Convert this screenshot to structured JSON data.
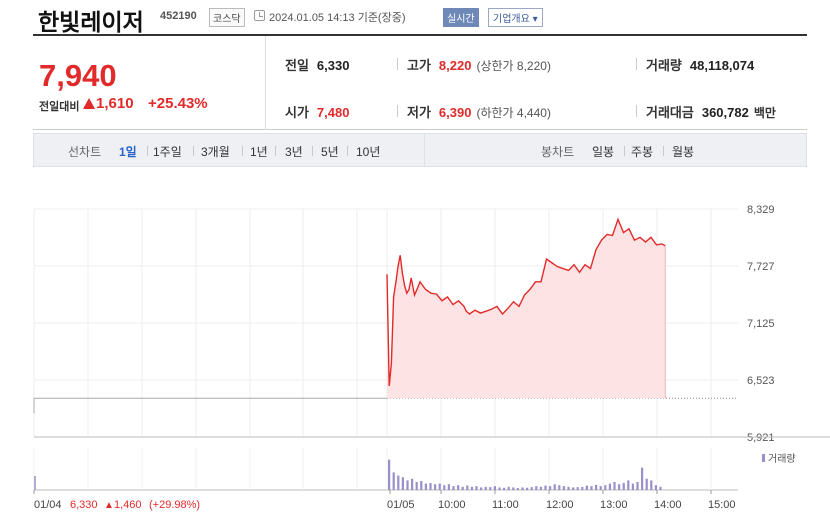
{
  "header": {
    "name": "한빛레이저",
    "code": "452190",
    "market": "코스닥",
    "timestamp": "2024.01.05 14:13 기준(장중)",
    "realtime": "실시간",
    "company_info": "기업개요 ▾"
  },
  "summary": {
    "price": "7,940",
    "change_label": "전일대비",
    "change_amount": "1,610",
    "change_percent": "+25.43%",
    "prev_close": {
      "label": "전일",
      "value": "6,330"
    },
    "open": {
      "label": "시가",
      "value": "7,480"
    },
    "high": {
      "label": "고가",
      "value": "8,220",
      "limit": "(상한가 8,220)"
    },
    "low": {
      "label": "저가",
      "value": "6,390",
      "limit": "(하한가 4,440)"
    },
    "volume": {
      "label": "거래량",
      "value": "48,118,074"
    },
    "turnover": {
      "label": "거래대금",
      "value": "360,782",
      "unit": "백만"
    }
  },
  "tabs": {
    "line_header": "선차트",
    "line": [
      "1일",
      "1주일",
      "3개월",
      "1년",
      "3년",
      "5년",
      "10년"
    ],
    "candle_header": "봉차트",
    "candle": [
      "일봉",
      "주봉",
      "월봉"
    ]
  },
  "colors": {
    "up": "#e22a2a",
    "area_fill": "#fde3e3",
    "volume": "#9a8fc9"
  },
  "chart_data": {
    "type": "area",
    "ylim": [
      5921,
      8329
    ],
    "yticks": [
      "8,329",
      "7,727",
      "7,125",
      "6,523",
      "5,921"
    ],
    "xticks": [
      "01/04",
      "01/05",
      "10:00",
      "11:00",
      "12:00",
      "13:00",
      "14:00",
      "15:00"
    ],
    "prev_day_label": "01/04",
    "prev_day_close": "6,330",
    "prev_day_change": "1,460",
    "prev_day_change_pct": "(+29.98%)",
    "volume_legend": "거래량",
    "prev_close_line": 6330,
    "series": [
      {
        "x": [
          0,
          2,
          4,
          6,
          8,
          10,
          12,
          14,
          16,
          18,
          20,
          22,
          25,
          28,
          30,
          35,
          40,
          45,
          50,
          55,
          60,
          65,
          70,
          72,
          75,
          80,
          85,
          90,
          95,
          100,
          105,
          110,
          115,
          120,
          125,
          130,
          135,
          140,
          145,
          150,
          155,
          160,
          165,
          170,
          175,
          180,
          185,
          190,
          195,
          200,
          205,
          210,
          215,
          220,
          225,
          230,
          235,
          240,
          245,
          250,
          253
        ],
        "values": [
          7640,
          6460,
          6700,
          7400,
          7550,
          7720,
          7840,
          7650,
          7520,
          7440,
          7480,
          7600,
          7420,
          7500,
          7560,
          7480,
          7440,
          7430,
          7360,
          7400,
          7320,
          7360,
          7300,
          7250,
          7220,
          7260,
          7230,
          7250,
          7270,
          7300,
          7220,
          7280,
          7350,
          7300,
          7420,
          7480,
          7560,
          7560,
          7800,
          7760,
          7720,
          7700,
          7680,
          7740,
          7660,
          7740,
          7700,
          7900,
          8000,
          8060,
          8050,
          8220,
          8080,
          8120,
          8000,
          8030,
          7980,
          8030,
          7950,
          7960,
          7940
        ]
      }
    ],
    "volume": [
      0.95,
      0.55,
      0.45,
      0.4,
      0.3,
      0.35,
      0.25,
      0.28,
      0.2,
      0.22,
      0.18,
      0.2,
      0.15,
      0.18,
      0.12,
      0.15,
      0.1,
      0.14,
      0.1,
      0.12,
      0.08,
      0.1,
      0.09,
      0.12,
      0.08,
      0.07,
      0.1,
      0.08,
      0.06,
      0.08,
      0.07,
      0.09,
      0.12,
      0.1,
      0.14,
      0.12,
      0.18,
      0.15,
      0.12,
      0.1,
      0.08,
      0.09,
      0.1,
      0.14,
      0.12,
      0.16,
      0.12,
      0.15,
      0.2,
      0.25,
      0.18,
      0.22,
      0.3,
      0.2,
      0.25,
      0.7,
      0.35,
      0.3,
      0.15,
      0.1
    ]
  }
}
